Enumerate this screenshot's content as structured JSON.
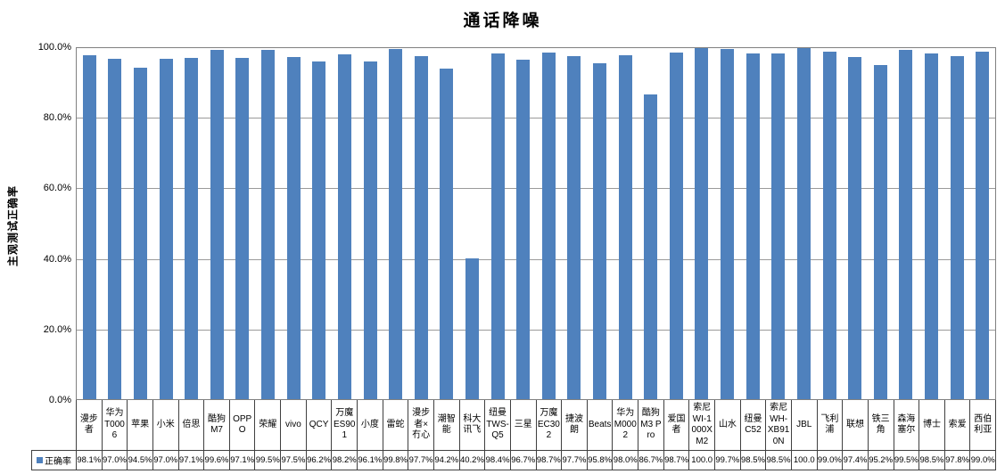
{
  "chart_data": {
    "type": "bar",
    "title": "通话降噪",
    "xlabel": "",
    "ylabel": "主观测试正确率",
    "series_name": "正确率",
    "legend_position": "bottom-left-of-data-table",
    "grid": "horizontal",
    "ylim": [
      0,
      100
    ],
    "ytick_labels": [
      "100.0%",
      "80.0%",
      "60.0%",
      "40.0%",
      "20.0%",
      "0.0%"
    ],
    "ytick_values": [
      100,
      80,
      60,
      40,
      20,
      0
    ],
    "bar_color": "#4f81bd",
    "categories": [
      "漫步者",
      "华为T0006",
      "苹果",
      "小米",
      "倍思",
      "酷狗M7",
      "OPPO",
      "荣耀",
      "vivo",
      "QCY",
      "万魔ES901",
      "小度",
      "雷蛇",
      "漫步者×冇心",
      "潮智能",
      "科大讯飞",
      "纽曼TWS-Q5",
      "三星",
      "万魔EC302",
      "捷波朗",
      "Beats",
      "华为M0002",
      "酷狗M3 Pro",
      "爱国者",
      "索尼WI-1000XM2",
      "山水",
      "纽曼C52",
      "索尼WH-XB910N",
      "JBL",
      "飞利浦",
      "联想",
      "铁三角",
      "森海塞尔",
      "博士",
      "索爱",
      "西伯利亚"
    ],
    "values": [
      98.1,
      97.0,
      94.5,
      97.0,
      97.1,
      99.6,
      97.1,
      99.5,
      97.5,
      96.2,
      98.2,
      96.1,
      99.8,
      97.7,
      94.2,
      40.2,
      98.4,
      96.7,
      98.7,
      97.7,
      95.8,
      98.0,
      86.7,
      98.7,
      100.0,
      99.7,
      98.5,
      98.5,
      100.0,
      99.0,
      97.4,
      95.2,
      99.5,
      98.5,
      97.8,
      99.0
    ],
    "value_labels": [
      "98.1%",
      "97.0%",
      "94.5%",
      "97.0%",
      "97.1%",
      "99.6%",
      "97.1%",
      "99.5%",
      "97.5%",
      "96.2%",
      "98.2%",
      "96.1%",
      "99.8%",
      "97.7%",
      "94.2%",
      "40.2%",
      "98.4%",
      "96.7%",
      "98.7%",
      "97.7%",
      "95.8%",
      "98.0%",
      "86.7%",
      "98.7%",
      "100.0",
      "99.7%",
      "98.5%",
      "98.5%",
      "100.0",
      "99.0%",
      "97.4%",
      "95.2%",
      "99.5%",
      "98.5%",
      "97.8%",
      "99.0%"
    ]
  },
  "colors": {
    "bar": "#4f81bd",
    "gridline": "#9a9a9a",
    "plot_border": "#808080",
    "table_border": "#404040",
    "background": "#ffffff",
    "text": "#000000"
  }
}
